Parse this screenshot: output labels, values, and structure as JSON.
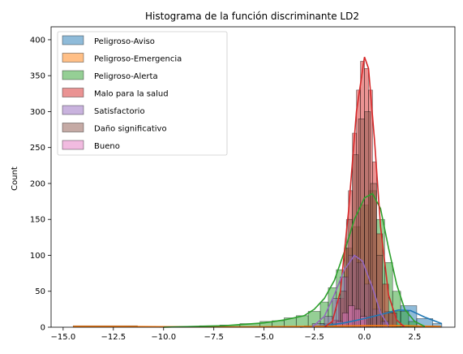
{
  "chart_data": {
    "type": "histogram",
    "title": "Histograma de la función discriminante LD2",
    "xlabel": "",
    "ylabel": "Count",
    "xlim": [
      -15.6,
      4.5
    ],
    "ylim": [
      0,
      418
    ],
    "x_ticks": [
      -15.0,
      -12.5,
      -10.0,
      -7.5,
      -5.0,
      -2.5,
      0.0,
      2.5
    ],
    "x_tick_labels": [
      "−15.0",
      "−12.5",
      "−10.0",
      "−7.5",
      "−5.0",
      "−2.5",
      "0.0",
      "2.5"
    ],
    "y_ticks": [
      0,
      50,
      100,
      150,
      200,
      250,
      300,
      350,
      400
    ],
    "grid": false,
    "legend_position": "top-left",
    "kde": true,
    "series": [
      {
        "name": "Peligroso-Aviso",
        "color": "#1f77b4",
        "bins": [
          [
            -3.0,
            -2.2,
            2
          ],
          [
            -2.2,
            -1.4,
            5
          ],
          [
            -1.4,
            -0.6,
            8
          ],
          [
            -0.6,
            0.2,
            10
          ],
          [
            0.2,
            1.0,
            16
          ],
          [
            1.0,
            1.8,
            22
          ],
          [
            1.8,
            2.6,
            30
          ],
          [
            2.6,
            3.4,
            12
          ],
          [
            3.4,
            3.85,
            5
          ]
        ],
        "kde": [
          [
            -3.2,
            0
          ],
          [
            -2,
            2
          ],
          [
            -1,
            6
          ],
          [
            0,
            12
          ],
          [
            1,
            19
          ],
          [
            1.7,
            24
          ],
          [
            2.3,
            23
          ],
          [
            3,
            14
          ],
          [
            3.85,
            5
          ]
        ]
      },
      {
        "name": "Peligroso-Emergencia",
        "color": "#ff7f0e",
        "bins": [
          [
            -14.5,
            -11.3,
            2
          ],
          [
            -11.3,
            -8.1,
            0.5
          ],
          [
            -8.1,
            -4.9,
            0.5
          ],
          [
            -4.9,
            -1.7,
            1
          ],
          [
            -1.7,
            1.5,
            2
          ],
          [
            1.5,
            3.8,
            1
          ]
        ],
        "kde": [
          [
            -14.5,
            1
          ],
          [
            -12,
            1
          ],
          [
            -9,
            0.5
          ],
          [
            -6,
            0.3
          ],
          [
            -3,
            1
          ],
          [
            0,
            2
          ],
          [
            2,
            2
          ],
          [
            3.8,
            1
          ]
        ]
      },
      {
        "name": "Peligroso-Alerta",
        "color": "#2ca02c",
        "bins": [
          [
            -10.2,
            -9.2,
            1
          ],
          [
            -9.2,
            -8.2,
            1
          ],
          [
            -8.2,
            -7.2,
            2
          ],
          [
            -7.2,
            -6.2,
            3
          ],
          [
            -6.2,
            -5.2,
            5
          ],
          [
            -5.2,
            -4.6,
            8
          ],
          [
            -4.6,
            -4.0,
            9
          ],
          [
            -4.0,
            -3.4,
            13
          ],
          [
            -3.4,
            -2.8,
            16
          ],
          [
            -2.8,
            -2.2,
            22
          ],
          [
            -2.2,
            -1.8,
            35
          ],
          [
            -1.8,
            -1.4,
            55
          ],
          [
            -1.4,
            -1.0,
            80
          ],
          [
            -1.0,
            -0.6,
            110
          ],
          [
            -0.6,
            -0.2,
            140
          ],
          [
            -0.2,
            0.2,
            170
          ],
          [
            0.2,
            0.6,
            190
          ],
          [
            0.6,
            1.0,
            150
          ],
          [
            1.0,
            1.4,
            90
          ],
          [
            1.4,
            1.8,
            50
          ],
          [
            1.8,
            2.2,
            22
          ],
          [
            2.2,
            2.6,
            8
          ]
        ],
        "kde": [
          [
            -10,
            0
          ],
          [
            -7,
            2
          ],
          [
            -5,
            6
          ],
          [
            -4,
            10
          ],
          [
            -3,
            16
          ],
          [
            -2.5,
            25
          ],
          [
            -2,
            40
          ],
          [
            -1.5,
            65
          ],
          [
            -1,
            105
          ],
          [
            -0.5,
            150
          ],
          [
            0,
            180
          ],
          [
            0.4,
            186
          ],
          [
            0.8,
            165
          ],
          [
            1.2,
            110
          ],
          [
            1.6,
            60
          ],
          [
            2,
            25
          ],
          [
            2.5,
            8
          ],
          [
            3,
            1
          ]
        ]
      },
      {
        "name": "Malo para la salud",
        "color": "#d62728",
        "bins": [
          [
            -1.6,
            -1.3,
            10
          ],
          [
            -1.3,
            -1.0,
            40
          ],
          [
            -1.0,
            -0.8,
            110
          ],
          [
            -0.8,
            -0.6,
            190
          ],
          [
            -0.6,
            -0.4,
            270
          ],
          [
            -0.4,
            -0.2,
            330
          ],
          [
            -0.2,
            0.0,
            370
          ],
          [
            0.0,
            0.2,
            360
          ],
          [
            0.2,
            0.4,
            330
          ],
          [
            0.4,
            0.6,
            230
          ],
          [
            0.6,
            0.9,
            130
          ],
          [
            0.9,
            1.2,
            60
          ],
          [
            1.2,
            1.6,
            20
          ]
        ],
        "kde": [
          [
            -2,
            0
          ],
          [
            -1.6,
            8
          ],
          [
            -1.2,
            50
          ],
          [
            -0.8,
            160
          ],
          [
            -0.4,
            300
          ],
          [
            0,
            376
          ],
          [
            0.2,
            360
          ],
          [
            0.5,
            260
          ],
          [
            0.8,
            140
          ],
          [
            1.2,
            45
          ],
          [
            1.6,
            10
          ],
          [
            2,
            0
          ]
        ]
      },
      {
        "name": "Satisfactorio",
        "color": "#9467bd",
        "bins": [
          [
            -2.6,
            -2.0,
            5
          ],
          [
            -2.0,
            -1.6,
            15
          ],
          [
            -1.6,
            -1.2,
            40
          ],
          [
            -1.2,
            -0.8,
            70
          ],
          [
            -0.8,
            -0.4,
            100
          ],
          [
            -0.4,
            0.0,
            90
          ],
          [
            0.0,
            0.4,
            60
          ],
          [
            0.4,
            0.8,
            25
          ],
          [
            0.8,
            1.2,
            8
          ]
        ],
        "kde": [
          [
            -2.6,
            0
          ],
          [
            -2,
            15
          ],
          [
            -1.5,
            45
          ],
          [
            -1,
            80
          ],
          [
            -0.5,
            100
          ],
          [
            -0.1,
            92
          ],
          [
            0.4,
            55
          ],
          [
            0.8,
            20
          ],
          [
            1.2,
            2
          ]
        ]
      },
      {
        "name": "Daño significativo",
        "color": "#8c564b",
        "bins": [
          [
            -1.2,
            -0.9,
            50
          ],
          [
            -0.9,
            -0.6,
            150
          ],
          [
            -0.6,
            -0.3,
            240
          ],
          [
            -0.3,
            0.0,
            290
          ],
          [
            0.0,
            0.3,
            300
          ],
          [
            0.3,
            0.6,
            200
          ],
          [
            0.6,
            0.9,
            100
          ]
        ],
        "kde": []
      },
      {
        "name": "Bueno",
        "color": "#e377c2",
        "bins": [
          [
            -1.4,
            -1.1,
            8
          ],
          [
            -1.1,
            -0.8,
            20
          ],
          [
            -0.8,
            -0.5,
            30
          ],
          [
            -0.5,
            -0.2,
            25
          ],
          [
            -0.2,
            0.1,
            15
          ]
        ],
        "kde": []
      }
    ]
  }
}
